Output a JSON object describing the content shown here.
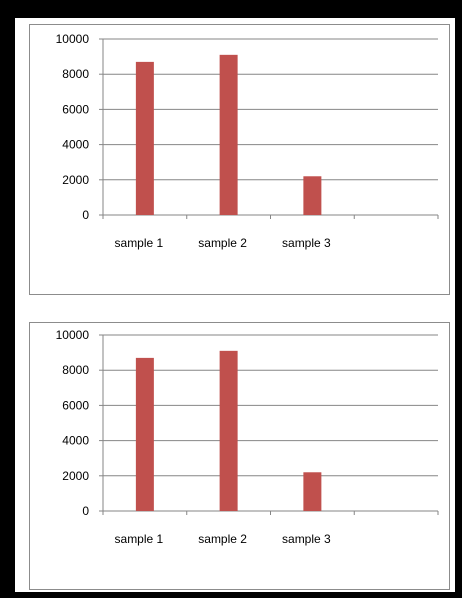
{
  "chart_data": [
    {
      "type": "bar",
      "categories": [
        "sample 1",
        "sample 2",
        "sample 3",
        ""
      ],
      "values": [
        8700,
        9100,
        2200,
        null
      ],
      "ylim": [
        0,
        10000
      ],
      "yticks": [
        0,
        2000,
        4000,
        6000,
        8000,
        10000
      ],
      "grid": true,
      "legend": "none",
      "bar_color": "#c0504d"
    },
    {
      "type": "bar",
      "categories": [
        "sample 1",
        "sample 2",
        "sample 3",
        ""
      ],
      "values": [
        8700,
        9100,
        2200,
        null
      ],
      "ylim": [
        0,
        10000
      ],
      "yticks": [
        0,
        2000,
        4000,
        6000,
        8000,
        10000
      ],
      "grid": true,
      "legend": "none",
      "bar_color": "#c0504d"
    }
  ]
}
